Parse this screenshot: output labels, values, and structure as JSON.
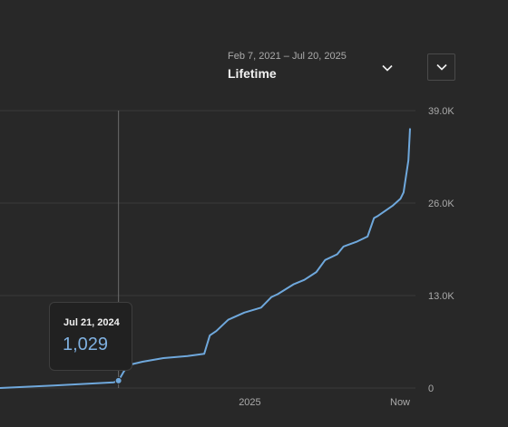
{
  "header": {
    "range_dates": "Feb 7, 2021 – Jul 20, 2025",
    "range_label": "Lifetime",
    "range_dropdown_icon": "chevron-down-icon",
    "menu_icon": "chevron-down-icon"
  },
  "tooltip": {
    "date": "Jul 21, 2024",
    "value": "1,029"
  },
  "colors": {
    "line": "#6fa8dc",
    "gridline": "#3a3a3a",
    "crosshair": "#6b6b6b"
  },
  "chart_data": {
    "type": "line",
    "title": "",
    "xlabel": "",
    "ylabel": "",
    "x_tick_labels": [
      "2025",
      "Now"
    ],
    "y_tick_labels": [
      "0",
      "13.0K",
      "26.0K",
      "39.0K"
    ],
    "y_ticks": [
      0,
      13000,
      26000,
      39000
    ],
    "ylim": [
      0,
      39000
    ],
    "grid": true,
    "legend": "none",
    "series": [
      {
        "x": [
          "2024-02-24",
          "2024-05-01",
          "2024-07-15",
          "2024-07-21",
          "2024-07-28",
          "2024-08-05",
          "2024-08-20",
          "2024-09-15",
          "2024-10-15",
          "2024-11-05",
          "2024-11-12",
          "2024-11-20",
          "2024-12-05",
          "2024-12-25",
          "2025-01-15",
          "2025-01-28",
          "2025-02-05",
          "2025-02-25",
          "2025-03-10",
          "2025-03-25",
          "2025-04-05",
          "2025-04-20",
          "2025-04-28",
          "2025-05-15",
          "2025-05-28",
          "2025-06-05",
          "2025-06-10",
          "2025-06-28",
          "2025-07-08",
          "2025-07-12",
          "2025-07-18",
          "2025-07-20"
        ],
        "values": [
          0,
          350,
          800,
          1029,
          2400,
          3300,
          3700,
          4200,
          4500,
          4800,
          7400,
          8000,
          9600,
          10600,
          11300,
          12800,
          13200,
          14600,
          15200,
          16300,
          18000,
          18800,
          19900,
          20600,
          21300,
          23900,
          24200,
          25600,
          26600,
          27500,
          32000,
          36500
        ]
      }
    ],
    "highlight": {
      "x": "2024-07-21",
      "value": 1029
    }
  }
}
